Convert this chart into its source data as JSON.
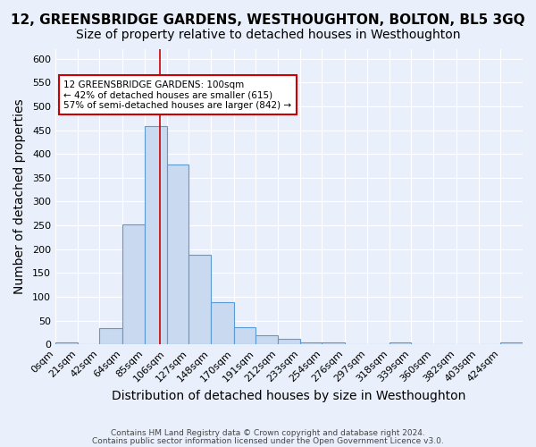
{
  "title": "12, GREENSBRIDGE GARDENS, WESTHOUGHTON, BOLTON, BL5 3GQ",
  "subtitle": "Size of property relative to detached houses in Westhoughton",
  "xlabel": "Distribution of detached houses by size in Westhoughton",
  "ylabel": "Number of detached properties",
  "bin_labels": [
    "0sqm",
    "21sqm",
    "42sqm",
    "64sqm",
    "85sqm",
    "106sqm",
    "127sqm",
    "148sqm",
    "170sqm",
    "191sqm",
    "212sqm",
    "233sqm",
    "254sqm",
    "276sqm",
    "297sqm",
    "318sqm",
    "339sqm",
    "360sqm",
    "382sqm",
    "403sqm",
    "424sqm"
  ],
  "bin_edges": [
    0,
    21,
    42,
    64,
    85,
    106,
    127,
    148,
    170,
    191,
    212,
    233,
    254,
    276,
    297,
    318,
    339,
    360,
    382,
    403,
    424,
    445
  ],
  "bar_heights": [
    4,
    0,
    35,
    252,
    458,
    378,
    188,
    88,
    37,
    20,
    11,
    5,
    4,
    0,
    0,
    5,
    0,
    0,
    0,
    0,
    4
  ],
  "bar_color": "#c9d9f0",
  "bar_edge_color": "#5b9bd5",
  "property_size": 100,
  "vline_color": "#cc0000",
  "annotation_text": "12 GREENSBRIDGE GARDENS: 100sqm\n← 42% of detached houses are smaller (615)\n57% of semi-detached houses are larger (842) →",
  "annotation_box_color": "white",
  "annotation_box_edge": "#cc0000",
  "ylim": [
    0,
    620
  ],
  "xlim": [
    0,
    445
  ],
  "yticks": [
    0,
    50,
    100,
    150,
    200,
    250,
    300,
    350,
    400,
    450,
    500,
    550,
    600
  ],
  "footer_line1": "Contains HM Land Registry data © Crown copyright and database right 2024.",
  "footer_line2": "Contains public sector information licensed under the Open Government Licence v3.0.",
  "background_color": "#eaf0fb",
  "grid_color": "white",
  "title_fontsize": 11,
  "subtitle_fontsize": 10,
  "axis_label_fontsize": 10,
  "tick_fontsize": 8
}
